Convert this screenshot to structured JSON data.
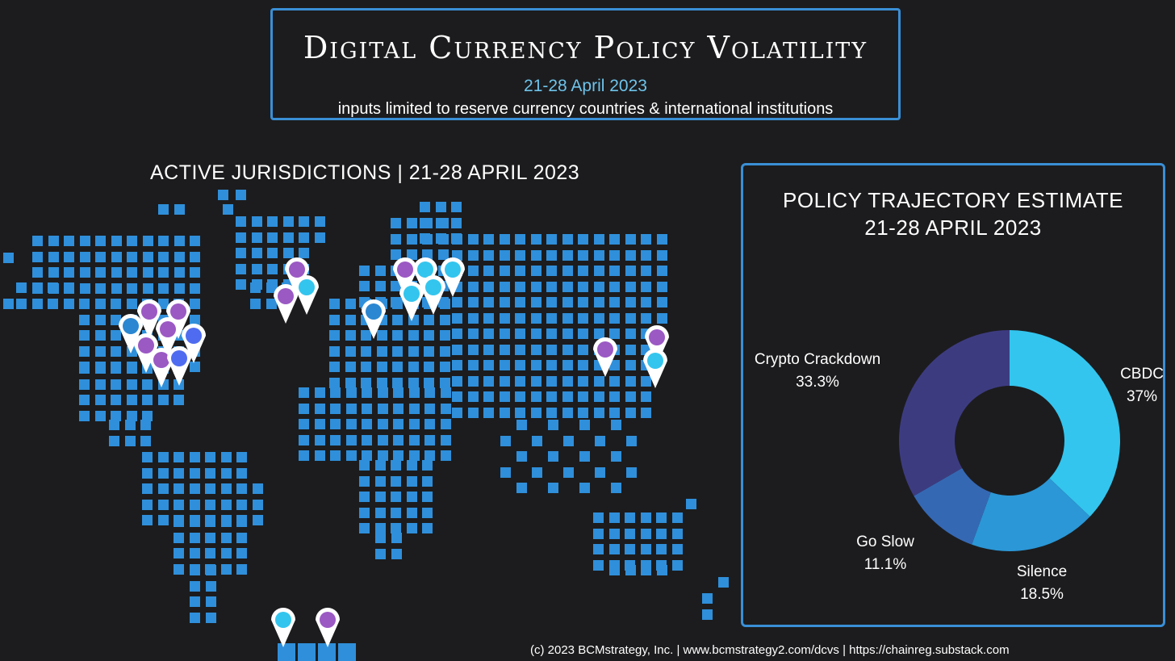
{
  "header": {
    "title": "Digital Currency Policy Volatility",
    "date": "21-28 April 2023",
    "subtitle": "inputs limited to reserve currency countries & international institutions"
  },
  "map": {
    "title": "ACTIVE JURISDICTIONS | 21-28 APRIL 2023"
  },
  "chart_data": {
    "type": "pie",
    "title": "POLICY TRAJECTORY ESTIMATE",
    "subtitle": "21-28 APRIL 2023",
    "style": "donut",
    "slices": [
      {
        "label": "CBDC",
        "value": 37,
        "display": "37%",
        "color": "#33c5ee"
      },
      {
        "label": "Silence",
        "value": 18.5,
        "display": "18.5%",
        "color": "#2b97d6"
      },
      {
        "label": "Go Slow",
        "value": 11.1,
        "display": "11.1%",
        "color": "#3568b3"
      },
      {
        "label": "Crypto Crackdown",
        "value": 33.3,
        "display": "33.3%",
        "color": "#3d3b80"
      }
    ]
  },
  "footer": {
    "credit": "(c) 2023 BCMstrategy, Inc. | www.bcmstrategy2.com/dcvs | https://chainreg.substack.com"
  },
  "colors": {
    "background": "#1c1c1e",
    "accent": "#3a8fd6",
    "map_tile": "#2f8fda",
    "pin_purple": "#9b59c4",
    "pin_cyan": "#33c5ee",
    "pin_blue": "#2b87d1",
    "pin_indigo": "#4f6cf0"
  }
}
